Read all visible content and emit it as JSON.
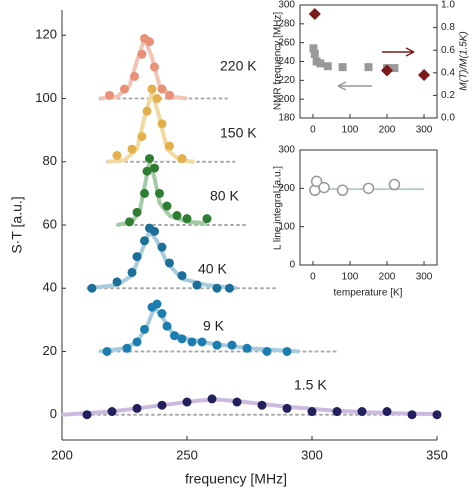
{
  "chart_data": [
    {
      "type": "scatter",
      "xlabel": "frequency [MHz]",
      "ylabel": "S·T [a.u.]",
      "xlim": [
        200,
        350
      ],
      "ylim": [
        -8,
        128
      ],
      "xticks": [
        200,
        250,
        300,
        350
      ],
      "yticks": [
        0,
        20,
        40,
        60,
        80,
        100,
        120
      ],
      "series": [
        {
          "name": "220 K",
          "color": "#e89078",
          "fit_color": "#f2c4b4",
          "baseline": 100,
          "x": [
            219,
            225,
            229,
            232,
            233,
            235,
            237,
            240,
            243
          ],
          "values": [
            101,
            103,
            107,
            114,
            119,
            118,
            110,
            103,
            101
          ],
          "fit": {
            "x": [
              215,
              222,
              227,
              230,
              233,
              236,
              239,
              244,
              250
            ],
            "values": [
              100,
              100.5,
              104,
              112,
              119,
              113,
              104,
              100.5,
              100
            ]
          }
        },
        {
          "name": "150 K",
          "color": "#e3b04b",
          "fit_color": "#f2d9a0",
          "baseline": 80,
          "x": [
            222,
            228,
            232,
            234,
            236,
            238,
            240,
            243,
            248
          ],
          "values": [
            82,
            84,
            88,
            96,
            103,
            100,
            92,
            85,
            81
          ],
          "fit": {
            "x": [
              218,
              225,
              230,
              233,
              236,
              239,
              242,
              247,
              253
            ],
            "values": [
              80,
              80.5,
              84,
              94,
              102,
              94,
              84,
              80.5,
              80
            ]
          }
        },
        {
          "name": "80 K",
          "color": "#2e7d32",
          "fit_color": "#a3cca4",
          "baseline": 60,
          "x": [
            227,
            230,
            233,
            234,
            235,
            237,
            239,
            242,
            246,
            250,
            258
          ],
          "values": [
            61,
            64,
            70,
            77,
            81,
            78,
            70,
            66,
            63,
            62,
            62
          ],
          "fit": {
            "x": [
              222,
              228,
              231,
              233,
              235,
              237,
              239,
              243,
              250,
              258
            ],
            "values": [
              60,
              61,
              64,
              72,
              80,
              75,
              67,
              63,
              61,
              60.5
            ]
          }
        },
        {
          "name": "40 K",
          "color": "#1b6f98",
          "fit_color": "#a8ccdc",
          "baseline": 40,
          "x": [
            212,
            222,
            228,
            230,
            233,
            235,
            237,
            240,
            243,
            248,
            254,
            262,
            267
          ],
          "values": [
            40,
            42,
            45,
            50,
            55,
            59,
            58,
            53,
            48,
            44,
            41,
            40,
            40
          ],
          "fit": {
            "x": [
              210,
              222,
              228,
              232,
              235,
              238,
              242,
              248,
              258,
              270
            ],
            "values": [
              40,
              41,
              44,
              52,
              58,
              55,
              48,
              43,
              41,
              40
            ]
          }
        },
        {
          "name": "9 K",
          "color": "#1b7db0",
          "fit_color": "#a8ccdc",
          "baseline": 20,
          "x": [
            218,
            226,
            230,
            233,
            236,
            238,
            240,
            242,
            245,
            248,
            252,
            256,
            262,
            268,
            274,
            282,
            290
          ],
          "values": [
            20,
            21,
            23,
            27,
            34,
            35,
            32,
            28,
            25,
            24,
            23,
            23,
            22,
            22,
            21,
            20,
            20
          ],
          "fit": {
            "x": [
              215,
              225,
              230,
              234,
              237,
              240,
              244,
              250,
              260,
              275,
              295
            ],
            "values": [
              20,
              21,
              23,
              28,
              34,
              31,
              26,
              24,
              22.5,
              21,
              20
            ]
          }
        },
        {
          "name": "1.5 K",
          "color": "#23205e",
          "fit_color": "#cbbade",
          "baseline": 0,
          "x": [
            210,
            220,
            230,
            240,
            250,
            260,
            270,
            280,
            290,
            300,
            310,
            320,
            330,
            340,
            350
          ],
          "values": [
            0,
            1,
            2,
            3,
            4,
            5,
            4,
            3,
            2,
            1,
            1,
            1,
            1,
            0,
            0
          ],
          "fit": {
            "x": [
              200,
              220,
              240,
              255,
              262,
              270,
              290,
              310,
              330,
              350
            ],
            "values": [
              0,
              1,
              3,
              4.5,
              4.8,
              4.3,
              2.5,
              1.2,
              0.5,
              0.2
            ]
          }
        }
      ]
    },
    {
      "type": "scatter",
      "ylabel": "NMR frequency [MHz]",
      "y2label": "M(T)/M(1.5K)",
      "xlim": [
        -35,
        335
      ],
      "ylim": [
        180,
        300
      ],
      "y2lim": [
        0,
        1
      ],
      "xticks": [
        0,
        100,
        200,
        300
      ],
      "yticks": [
        180,
        200,
        220,
        240,
        260,
        280,
        300
      ],
      "y2ticks": [
        {
          "value": 0,
          "label": "0.0"
        },
        0.2,
        0.4,
        0.6,
        0.8,
        {
          "value": 1,
          "label": "1.0"
        }
      ],
      "series": [
        {
          "color": "#999999",
          "marker": "square",
          "x": [
            1.5,
            5,
            10,
            20,
            40,
            80,
            150,
            200,
            220
          ],
          "values": [
            254,
            248,
            240,
            238,
            235,
            234,
            234,
            233,
            233
          ]
        },
        {
          "color": "#7a1a1a",
          "marker": "diamond",
          "axis": "y2",
          "x": [
            5,
            200,
            300
          ],
          "values": [
            0.92,
            0.42,
            0.38
          ]
        }
      ]
    },
    {
      "type": "scatter",
      "xlabel": "temperature [K]",
      "ylabel": "L line integral [a.u.]",
      "xlim": [
        -35,
        335
      ],
      "ylim": [
        0,
        300
      ],
      "xticks": [
        0,
        100,
        200,
        300
      ],
      "yticks": [
        0,
        100,
        200,
        300
      ],
      "series": [
        {
          "color": "#999999",
          "fit_color": "#b8cfc4",
          "marker": "open-circle",
          "x": [
            5,
            10,
            30,
            80,
            150,
            220
          ],
          "values": [
            195,
            218,
            202,
            195,
            200,
            210
          ],
          "fit": {
            "x": [
              0,
              300
            ],
            "values": [
              198,
              198
            ]
          }
        }
      ]
    }
  ]
}
